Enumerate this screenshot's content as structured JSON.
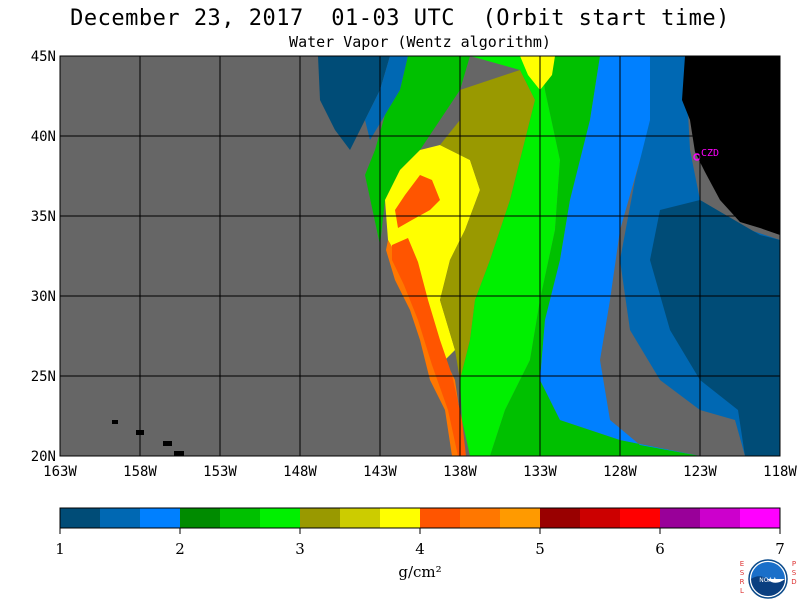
{
  "header": {
    "title": "December 23, 2017  01-03 UTC  (Orbit start time)",
    "subtitle": "Water Vapor (Wentz algorithm)"
  },
  "map": {
    "lat_labels": [
      "45N",
      "40N",
      "35N",
      "30N",
      "25N",
      "20N"
    ],
    "lon_labels": [
      "163W",
      "158W",
      "153W",
      "148W",
      "143W",
      "138W",
      "133W",
      "128W",
      "123W",
      "118W"
    ],
    "station_label": "CZD",
    "colors": {
      "no_data": "#666666",
      "land": "#000000",
      "grid": "#000000",
      "station": "#ff00ff"
    }
  },
  "colorbar": {
    "colors": [
      "#004c77",
      "#0068b3",
      "#0080ff",
      "#008b00",
      "#00c000",
      "#00f000",
      "#999900",
      "#cccc00",
      "#ffff00",
      "#ff5500",
      "#ff7700",
      "#ff9a00",
      "#990000",
      "#cc0000",
      "#ff0000",
      "#990099",
      "#cc00cc",
      "#ff00ff"
    ],
    "tick_labels": [
      "1",
      "2",
      "3",
      "4",
      "5",
      "6",
      "7"
    ],
    "unit": "g/cm²"
  },
  "logo": {
    "left_letters": "ESRL",
    "right_letters": "PSD",
    "center_text": "NOAA"
  }
}
